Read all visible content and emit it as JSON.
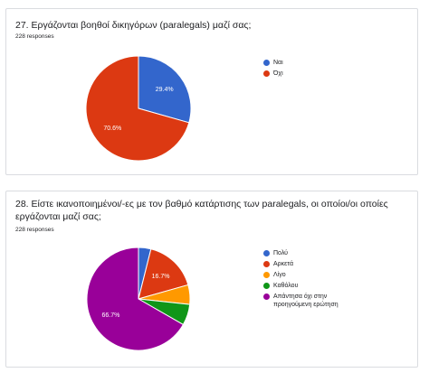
{
  "charts": [
    {
      "title": "27. Εργάζονται βοηθοί δικηγόρων (paralegals) μαζί σας;",
      "responses": "228 responses"
    },
    {
      "title": "28. Είστε ικανοποιημένοι/-ες με τον βαθμό κατάρτισης των paralegals, οι οποίοι/οι οποίες εργάζονται μαζί σας;",
      "responses": "228 responses"
    }
  ],
  "chart_data": [
    {
      "type": "pie",
      "title": "27. Εργάζονται βοηθοί δικηγόρων (paralegals) μαζί σας;",
      "categories": [
        "Ναι",
        "Όχι"
      ],
      "values": [
        29.4,
        70.6
      ],
      "labels": [
        "29.4%",
        "70.6%"
      ],
      "colors": [
        "#3366cc",
        "#dc3912"
      ],
      "legend": "right"
    },
    {
      "type": "pie",
      "title": "28. Είστε ικανοποιημένοι/-ες με τον βαθμό κατάρτισης των paralegals, οι οποίοι/οι οποίες εργάζονται μαζί σας;",
      "categories": [
        "Πολύ",
        "Αρκετά",
        "Λίγο",
        "Καθόλου",
        "Απάντησα όχι στην προηγούμενη ερώτηση"
      ],
      "values": [
        3.9,
        16.7,
        6.1,
        6.6,
        66.7
      ],
      "labels": [
        "",
        "16.7%",
        "",
        "",
        "66.7%"
      ],
      "colors": [
        "#3366cc",
        "#dc3912",
        "#ff9900",
        "#109618",
        "#990099"
      ],
      "legend": "right"
    }
  ]
}
